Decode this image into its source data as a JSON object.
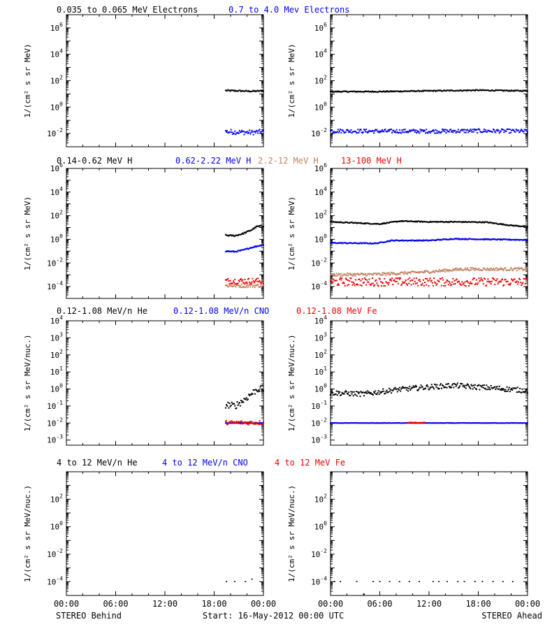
{
  "colors": {
    "black": "#000000",
    "blue": "#0000ee",
    "tan": "#c08060",
    "red": "#ee0000"
  },
  "x_axis": {
    "tick_labels": [
      "00:00",
      "06:00",
      "12:00",
      "18:00",
      "00:00"
    ],
    "hours": [
      0,
      6,
      12,
      18,
      24
    ],
    "minor_step_hours": 2
  },
  "footer": {
    "left": "STEREO Behind",
    "center": "Start: 16-May-2012 00:00 UTC",
    "right": "STEREO Ahead"
  },
  "chart_data": [
    {
      "type": "scatter",
      "panel": "electrons-behind",
      "ylabel": "1/(cm² s sr MeV)",
      "yscale": "log",
      "ylim": [
        0.001,
        10000000
      ],
      "yticks": [
        [
          "10",
          "-2",
          0.01
        ],
        [
          "10",
          "0",
          1
        ],
        [
          "10",
          "2",
          100
        ],
        [
          "10",
          "4",
          10000
        ],
        [
          "10",
          "6",
          1000000
        ]
      ],
      "xlim": [
        0,
        24
      ],
      "series": [
        {
          "name": "0.035 to 0.065 MeV Electrons",
          "color": "black",
          "style": "band",
          "x_start": 19.4,
          "x_end": 24,
          "points": [
            [
              19.4,
              18
            ],
            [
              21,
              17
            ],
            [
              22.5,
              16
            ],
            [
              24,
              17
            ]
          ],
          "spread": 0.05
        },
        {
          "name": "0.7 to 4.0 Mev Electrons",
          "color": "blue",
          "style": "scatter",
          "x_start": 19.4,
          "x_end": 24,
          "points": [
            [
              19.4,
              0.014
            ],
            [
              21,
              0.013
            ],
            [
              22.5,
              0.012
            ],
            [
              24,
              0.014
            ]
          ],
          "spread": 0.18
        }
      ]
    },
    {
      "type": "scatter",
      "panel": "electrons-ahead",
      "ylabel": "1/(cm² s sr MeV)",
      "yscale": "log",
      "ylim": [
        0.001,
        10000000
      ],
      "yticks": [
        [
          "10",
          "-2",
          0.01
        ],
        [
          "10",
          "0",
          1
        ],
        [
          "10",
          "2",
          100
        ],
        [
          "10",
          "4",
          10000
        ],
        [
          "10",
          "6",
          1000000
        ]
      ],
      "xlim": [
        0,
        24
      ],
      "series": [
        {
          "name": "0.035 to 0.065 MeV Electrons",
          "color": "black",
          "style": "band",
          "x_start": 0,
          "x_end": 24,
          "points": [
            [
              0,
              15
            ],
            [
              6,
              15
            ],
            [
              12,
              17
            ],
            [
              18,
              19
            ],
            [
              24,
              17
            ]
          ],
          "spread": 0.04
        },
        {
          "name": "0.7 to 4.0 Mev Electrons",
          "color": "blue",
          "style": "scatter",
          "x_start": 0,
          "x_end": 24,
          "points": [
            [
              0,
              0.016
            ],
            [
              6,
              0.015
            ],
            [
              12,
              0.015
            ],
            [
              18,
              0.016
            ],
            [
              24,
              0.015
            ]
          ],
          "spread": 0.15
        }
      ]
    },
    {
      "type": "scatter",
      "panel": "protons-behind",
      "ylabel": "1/(cm² s sr MeV)",
      "yscale": "log",
      "ylim": [
        1e-05,
        1000000
      ],
      "yticks": [
        [
          "10",
          "-4",
          0.0001
        ],
        [
          "10",
          "-2",
          0.01
        ],
        [
          "10",
          "0",
          1
        ],
        [
          "10",
          "2",
          100
        ],
        [
          "10",
          "4",
          10000
        ],
        [
          "10",
          "6",
          1000000
        ]
      ],
      "xlim": [
        0,
        24
      ],
      "series": [
        {
          "name": "0.14-0.62 MeV H",
          "color": "black",
          "style": "band",
          "x_start": 19.4,
          "x_end": 24,
          "points": [
            [
              19.4,
              2.2
            ],
            [
              20.5,
              2.0
            ],
            [
              21.5,
              3.0
            ],
            [
              22.5,
              6
            ],
            [
              23.2,
              12
            ],
            [
              24,
              14
            ]
          ],
          "spread": 0.06
        },
        {
          "name": "0.62-2.22 MeV H",
          "color": "blue",
          "style": "band",
          "x_start": 19.4,
          "x_end": 24,
          "points": [
            [
              19.4,
              0.1
            ],
            [
              20.5,
              0.09
            ],
            [
              21.5,
              0.12
            ],
            [
              22.5,
              0.2
            ],
            [
              24,
              0.35
            ]
          ],
          "spread": 0.05
        },
        {
          "name": "2.2-12 MeV H",
          "color": "tan",
          "style": "scatter",
          "x_start": 19.4,
          "x_end": 24,
          "points": [
            [
              19.4,
              0.00012
            ],
            [
              24,
              0.00012
            ]
          ],
          "spread": 0.15
        },
        {
          "name": "13-100 MeV H",
          "color": "red",
          "style": "scatter",
          "x_start": 19.4,
          "x_end": 24,
          "points": [
            [
              19.4,
              0.0003
            ],
            [
              24,
              0.0003
            ]
          ],
          "spread": 0.25
        }
      ]
    },
    {
      "type": "scatter",
      "panel": "protons-ahead",
      "ylabel": "1/(cm² s sr MeV)",
      "yscale": "log",
      "ylim": [
        1e-05,
        1000000
      ],
      "yticks": [
        [
          "10",
          "-4",
          0.0001
        ],
        [
          "10",
          "-2",
          0.01
        ],
        [
          "10",
          "0",
          1
        ],
        [
          "10",
          "2",
          100
        ],
        [
          "10",
          "4",
          10000
        ],
        [
          "10",
          "6",
          1000000
        ]
      ],
      "xlim": [
        0,
        24
      ],
      "series": [
        {
          "name": "0.14-0.62 MeV H",
          "color": "black",
          "style": "band",
          "x_start": 0,
          "x_end": 24,
          "points": [
            [
              0,
              30
            ],
            [
              6,
              20
            ],
            [
              8.5,
              35
            ],
            [
              12,
              30
            ],
            [
              15,
              30
            ],
            [
              19,
              28
            ],
            [
              22,
              15
            ],
            [
              24,
              12
            ]
          ],
          "spread": 0.04
        },
        {
          "name": "0.62-2.22 MeV H",
          "color": "blue",
          "style": "band",
          "x_start": 0,
          "x_end": 24,
          "points": [
            [
              0,
              0.5
            ],
            [
              5.5,
              0.45
            ],
            [
              7.5,
              0.8
            ],
            [
              12,
              0.8
            ],
            [
              15,
              1.1
            ],
            [
              19,
              1.0
            ],
            [
              24,
              0.9
            ]
          ],
          "spread": 0.04
        },
        {
          "name": "2.2-12 MeV H",
          "color": "tan",
          "style": "scatter",
          "x_start": 0,
          "x_end": 24,
          "points": [
            [
              0,
              0.001
            ],
            [
              6,
              0.0011
            ],
            [
              12,
              0.0018
            ],
            [
              16,
              0.003
            ],
            [
              24,
              0.003
            ]
          ],
          "spread": 0.12
        },
        {
          "name": "13-100 MeV H",
          "color": "red",
          "style": "scatter",
          "x_start": 0,
          "x_end": 24,
          "points": [
            [
              0,
              0.00025
            ],
            [
              24,
              0.00025
            ]
          ],
          "spread": 0.35
        }
      ]
    },
    {
      "type": "scatter",
      "panel": "ions-low-behind",
      "ylabel": "1/(cm² s sr MeV/nuc.)",
      "yscale": "log",
      "ylim": [
        0.0005,
        10000
      ],
      "yticks": [
        [
          "10",
          "-3",
          0.001
        ],
        [
          "10",
          "-2",
          0.01
        ],
        [
          "10",
          "-1",
          0.1
        ],
        [
          "10",
          "0",
          1
        ],
        [
          "10",
          "1",
          10
        ],
        [
          "10",
          "2",
          100
        ],
        [
          "10",
          "3",
          1000
        ],
        [
          "10",
          "4",
          10000
        ]
      ],
      "xlim": [
        0,
        24
      ],
      "series": [
        {
          "name": "0.12-1.08 MeV/n He",
          "color": "black",
          "style": "scatter",
          "x_start": 19.4,
          "x_end": 24,
          "points": [
            [
              19.4,
              0.12
            ],
            [
              20.5,
              0.1
            ],
            [
              21.5,
              0.2
            ],
            [
              22.5,
              0.5
            ],
            [
              23.3,
              1.0
            ],
            [
              24,
              1.0
            ]
          ],
          "spread": 0.2
        },
        {
          "name": "0.12-1.08 MeV/n CNO",
          "color": "blue",
          "style": "scatter",
          "x_start": 19.4,
          "x_end": 24,
          "points": [
            [
              19.4,
              0.01
            ],
            [
              24,
              0.01
            ]
          ],
          "spread": 0.01
        },
        {
          "name": "0.12-1.08 MeV Fe",
          "color": "red",
          "style": "scatter",
          "x_start": 19.4,
          "x_end": 24,
          "points": [
            [
              19.4,
              0.0105
            ],
            [
              24,
              0.0105
            ]
          ],
          "spread": 0.12
        }
      ]
    },
    {
      "type": "scatter",
      "panel": "ions-low-ahead",
      "ylabel": "1/(cm² s sr MeV/nuc.)",
      "yscale": "log",
      "ylim": [
        0.0005,
        10000
      ],
      "yticks": [
        [
          "10",
          "-3",
          0.001
        ],
        [
          "10",
          "-2",
          0.01
        ],
        [
          "10",
          "-1",
          0.1
        ],
        [
          "10",
          "0",
          1
        ],
        [
          "10",
          "1",
          10
        ],
        [
          "10",
          "2",
          100
        ],
        [
          "10",
          "3",
          1000
        ],
        [
          "10",
          "4",
          10000
        ]
      ],
      "xlim": [
        0,
        24
      ],
      "series": [
        {
          "name": "0.12-1.08 MeV/n He",
          "color": "black",
          "style": "scatter",
          "x_start": 0,
          "x_end": 24,
          "points": [
            [
              0,
              0.6
            ],
            [
              4,
              0.5
            ],
            [
              8,
              0.9
            ],
            [
              12,
              1.3
            ],
            [
              15,
              1.6
            ],
            [
              19,
              1.2
            ],
            [
              24,
              0.8
            ]
          ],
          "spread": 0.15
        },
        {
          "name": "0.12-1.08 MeV/n CNO",
          "color": "blue",
          "style": "scatter",
          "x_start": 0,
          "x_end": 24,
          "points": [
            [
              0,
              0.01
            ],
            [
              24,
              0.01
            ]
          ],
          "spread": 0.01
        },
        {
          "name": "0.12-1.08 MeV Fe",
          "color": "red",
          "style": "scatter",
          "x_start": 9.5,
          "x_end": 11.5,
          "points": [
            [
              9.5,
              0.0105
            ],
            [
              11.5,
              0.0105
            ]
          ],
          "spread": 0.02
        }
      ]
    },
    {
      "type": "scatter",
      "panel": "ions-high-behind",
      "ylabel": "1/(cm² s sr MeV/nuc.)",
      "yscale": "log",
      "ylim": [
        1e-05,
        10000
      ],
      "yticks": [
        [
          "10",
          "-4",
          0.0001
        ],
        [
          "10",
          "-2",
          0.01
        ],
        [
          "10",
          "0",
          1
        ],
        [
          "10",
          "2",
          100
        ]
      ],
      "xlim": [
        0,
        24
      ],
      "series": [
        {
          "name": "4 to 12 MeV/n He",
          "color": "black",
          "style": "sparse",
          "x_start": 19.4,
          "x_end": 24,
          "points": [
            [
              19.5,
              0.0001
            ],
            [
              20.5,
              0.0001
            ],
            [
              21.8,
              0.0001
            ],
            [
              22.6,
              0.00015
            ]
          ],
          "spread": 0
        },
        {
          "name": "4 to 12 MeV/n CNO",
          "color": "blue",
          "style": "sparse",
          "x_start": 0,
          "x_end": 0,
          "points": [],
          "spread": 0
        },
        {
          "name": "4 to 12 MeV Fe",
          "color": "red",
          "style": "sparse",
          "x_start": 0,
          "x_end": 0,
          "points": [],
          "spread": 0
        }
      ]
    },
    {
      "type": "scatter",
      "panel": "ions-high-ahead",
      "ylabel": "1/(cm² s sr MeV/nuc.)",
      "yscale": "log",
      "ylim": [
        1e-05,
        10000
      ],
      "yticks": [
        [
          "10",
          "-4",
          0.0001
        ],
        [
          "10",
          "-2",
          0.01
        ],
        [
          "10",
          "0",
          1
        ],
        [
          "10",
          "2",
          100
        ]
      ],
      "xlim": [
        0,
        24
      ],
      "series": [
        {
          "name": "4 to 12 MeV/n He",
          "color": "black",
          "style": "sparse",
          "x_start": 0,
          "x_end": 24,
          "points": [
            [
              0.5,
              0.0001
            ],
            [
              1.2,
              0.0001
            ],
            [
              3.2,
              0.0001
            ],
            [
              5.2,
              0.0001
            ],
            [
              6.0,
              0.0001
            ],
            [
              7.2,
              0.0001
            ],
            [
              8.4,
              0.0001
            ],
            [
              9.6,
              0.0001
            ],
            [
              10.8,
              0.0001
            ],
            [
              12.5,
              0.0001
            ],
            [
              13.2,
              0.0001
            ],
            [
              14.2,
              0.0001
            ],
            [
              15.5,
              0.0001
            ],
            [
              16.3,
              0.0001
            ],
            [
              17.6,
              0.0001
            ],
            [
              18.5,
              0.0001
            ],
            [
              19.8,
              0.0001
            ],
            [
              21.0,
              0.0001
            ],
            [
              22.2,
              0.0001
            ],
            [
              23.7,
              0.00018
            ],
            [
              4.1,
              1.2e-05
            ]
          ],
          "spread": 0
        },
        {
          "name": "4 to 12 MeV/n CNO",
          "color": "blue",
          "style": "sparse",
          "x_start": 0,
          "x_end": 0,
          "points": [],
          "spread": 0
        },
        {
          "name": "4 to 12 MeV Fe",
          "color": "red",
          "style": "sparse",
          "x_start": 0,
          "x_end": 0,
          "points": [],
          "spread": 0
        }
      ]
    }
  ],
  "row_titles": [
    [
      {
        "text": "0.035 to 0.065 MeV Electrons",
        "color": "black"
      },
      {
        "text": "0.7 to 4.0 Mev Electrons",
        "color": "blue"
      }
    ],
    [
      {
        "text": "0.14-0.62 MeV H",
        "color": "black"
      },
      {
        "text": "0.62-2.22 MeV H",
        "color": "blue"
      },
      {
        "text": "2.2-12 MeV H",
        "color": "tan"
      },
      {
        "text": "13-100 MeV H",
        "color": "red"
      }
    ],
    [
      {
        "text": "0.12-1.08 MeV/n He",
        "color": "black"
      },
      {
        "text": "0.12-1.08 MeV/n CNO",
        "color": "blue"
      },
      {
        "text": "0.12-1.08 MeV Fe",
        "color": "red"
      }
    ],
    [
      {
        "text": "4 to 12 MeV/n He",
        "color": "black"
      },
      {
        "text": "4 to 12 MeV/n CNO",
        "color": "blue"
      },
      {
        "text": "4 to 12 MeV Fe",
        "color": "red"
      }
    ]
  ]
}
